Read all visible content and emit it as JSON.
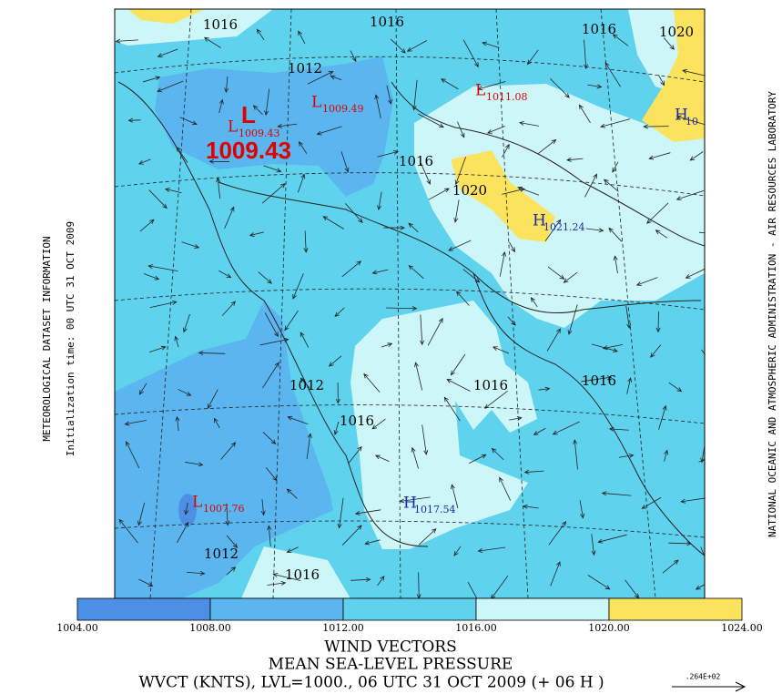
{
  "side_left": [
    "METEOROLOGICAL DATASET INFORMATION",
    "Initialization time: 00 UTC 31 OCT 2009"
  ],
  "side_right": "NATIONAL OCEANIC AND ATMOSPHERIC ADMINISTRATION - AIR RESOURCES LABORATORY",
  "map": {
    "contour_labels": [
      "1016",
      "1016",
      "1016",
      "1020",
      "1012",
      "1016",
      "1020",
      "1012",
      "1016",
      "1016",
      "1016",
      "1012",
      "1016"
    ],
    "centers": [
      {
        "symbol": "L",
        "value": "1009.43"
      },
      {
        "symbol": "L",
        "value": "1009.49"
      },
      {
        "symbol": "L",
        "value": "1011.08"
      },
      {
        "symbol": "H",
        "value": "10"
      },
      {
        "symbol": "H",
        "value": "1021.24"
      },
      {
        "symbol": "L",
        "value": "1007.76"
      },
      {
        "symbol": "H",
        "value": "1017.54"
      }
    ],
    "highlight": {
      "symbol": "L",
      "value": "1009.43"
    }
  },
  "colorbar": {
    "ticks": [
      "1004.00",
      "1008.00",
      "1012.00",
      "1016.00",
      "1020.00",
      "1024.00"
    ],
    "colors": [
      "#4e8fe6",
      "#5bb5ee",
      "#5fd2ee",
      "#ccf6f8",
      "#fbe35e"
    ]
  },
  "titles": [
    "WIND VECTORS",
    "MEAN SEA-LEVEL PRESSURE",
    "WVCT (KNTS),  LVL=1000., 06 UTC 31 OCT 2009 (+ 06 H )"
  ],
  "vector_scale": ".264E+02"
}
